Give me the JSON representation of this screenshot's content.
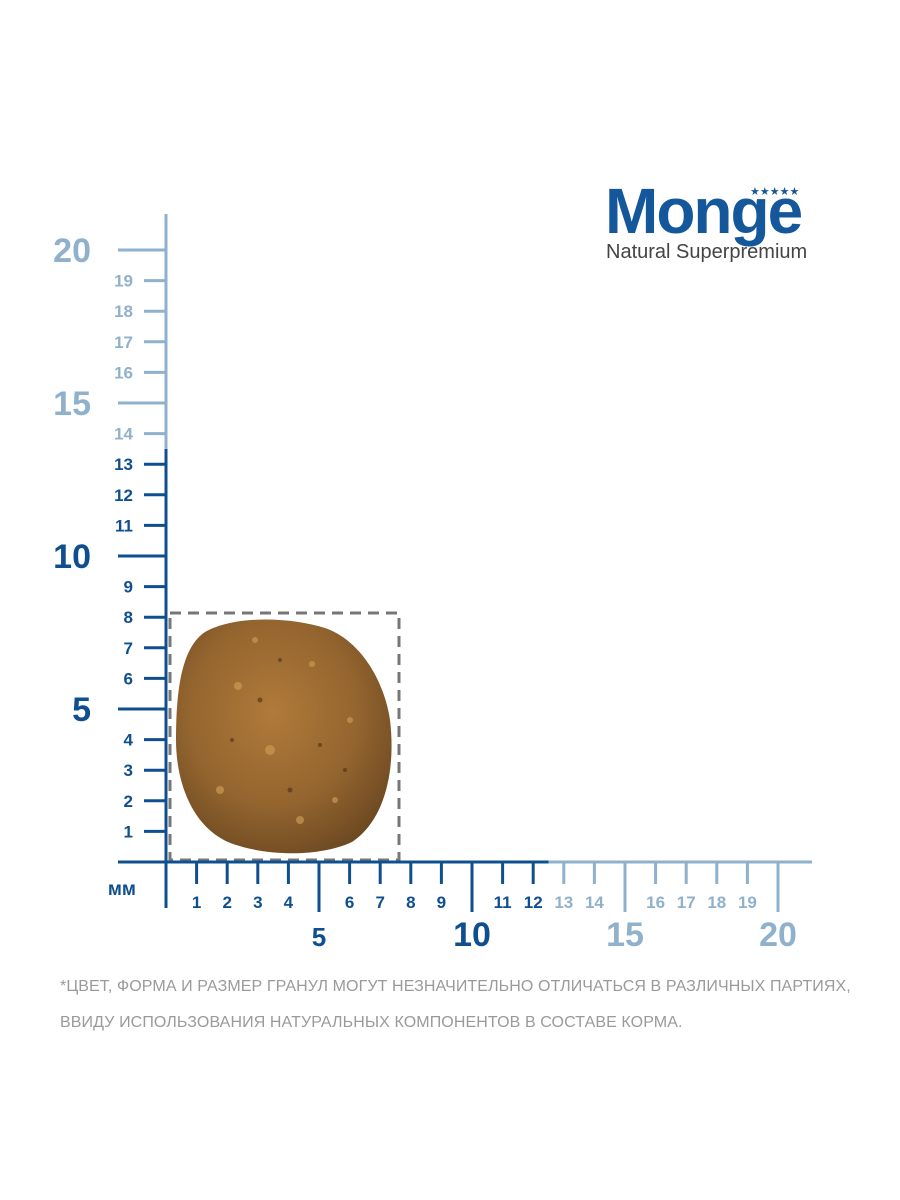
{
  "brand": {
    "name": "Monge",
    "tagline": "Natural Superpremium",
    "color": "#15579b",
    "star_color": "#15579b"
  },
  "ruler": {
    "unit_label": "мм",
    "dark_color": "#0f4f8f",
    "light_color": "#8fb1cc",
    "dark_limit_mm": 12.5,
    "dark_limit_mm_y": 13.5,
    "max_mm": 20,
    "y_minor_labels": [
      "1",
      "2",
      "3",
      "4",
      "6",
      "7",
      "8",
      "9",
      "11",
      "12",
      "13",
      "14",
      "16",
      "17",
      "18",
      "19"
    ],
    "y_major_labels": [
      "5",
      "10",
      "15",
      "20"
    ],
    "x_minor_labels": [
      "1",
      "2",
      "3",
      "4",
      "6",
      "7",
      "8",
      "9",
      "11",
      "12",
      "13",
      "14",
      "16",
      "17",
      "18",
      "19"
    ],
    "x_major_labels": [
      "5",
      "10",
      "15",
      "20"
    ]
  },
  "kibble": {
    "width_mm": 8,
    "height_mm": 8.5,
    "fill": "#9a6a33",
    "outline": "dashed",
    "outline_color": "#777777"
  },
  "disclaimer": {
    "line1": "*ЦВЕТ, ФОРМА И РАЗМЕР ГРАНУЛ МОГУТ НЕЗНАЧИТЕЛЬНО ОТЛИЧАТЬСЯ В РАЗЛИЧНЫХ ПАРТИЯХ,",
    "line2": "ВВИДУ ИСПОЛЬЗОВАНИЯ НАТУРАЛЬНЫХ КОМПОНЕНТОВ В СОСТАВЕ КОРМА."
  }
}
